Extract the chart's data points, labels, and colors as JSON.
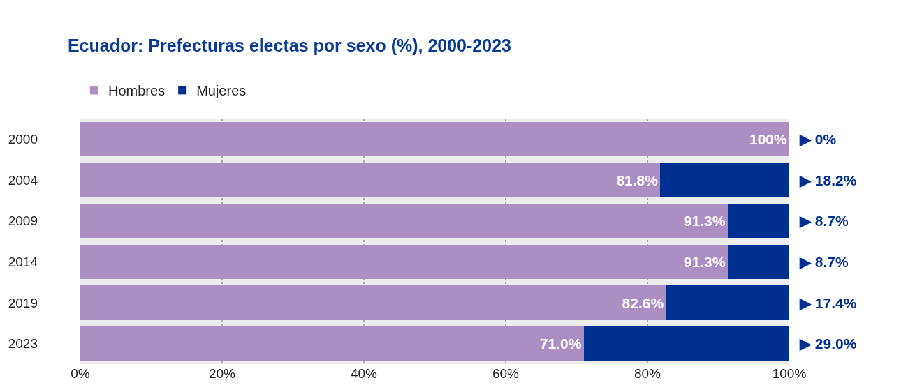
{
  "chart_data": {
    "type": "bar",
    "orientation": "horizontal",
    "stacked": true,
    "title": "Ecuador: Prefecturas electas por sexo (%), 2000-2023",
    "categories": [
      "2000",
      "2004",
      "2009",
      "2014",
      "2019",
      "2023"
    ],
    "series": [
      {
        "name": "Hombres",
        "color": "#ab8fc3",
        "values": [
          100,
          81.8,
          91.3,
          91.3,
          82.6,
          71.0
        ],
        "value_labels": [
          "100%",
          "81.8%",
          "91.3%",
          "91.3%",
          "82.6%",
          "71.0%"
        ]
      },
      {
        "name": "Mujeres",
        "color": "#00308f",
        "values": [
          0,
          18.2,
          8.7,
          8.7,
          17.4,
          29.0
        ],
        "value_labels": [
          "▶ 0%",
          "▶ 18.2%",
          "▶ 8.7%",
          "▶ 8.7%",
          "▶ 17.4%",
          "▶ 29.0%"
        ]
      }
    ],
    "xlim": [
      0,
      100
    ],
    "xticks": [
      {
        "value": 0,
        "label": "0%"
      },
      {
        "value": 20,
        "label": "20%"
      },
      {
        "value": 40,
        "label": "40%"
      },
      {
        "value": 60,
        "label": "60%"
      },
      {
        "value": 80,
        "label": "80%"
      },
      {
        "value": 100,
        "label": "100%"
      }
    ],
    "grid": "x",
    "legend": "top left"
  }
}
